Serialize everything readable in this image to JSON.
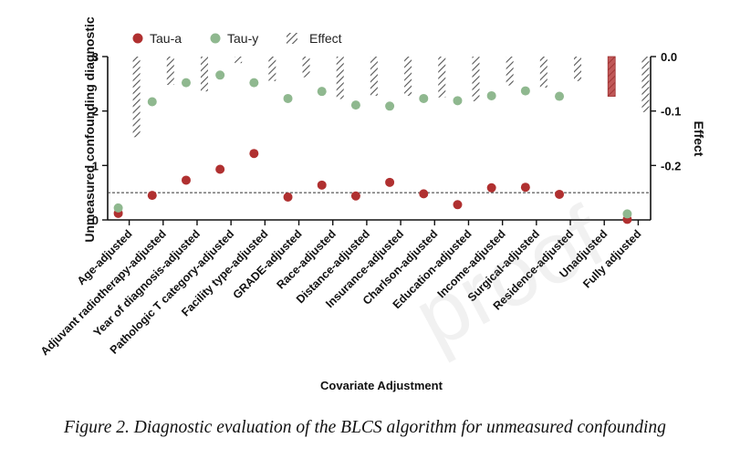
{
  "chart_data": {
    "type": "scatter",
    "xlabel": "Covariate Adjustment",
    "ylabel_left": "Unmeasured confounding diagnostic",
    "ylabel_right": "Effect",
    "left_ylim": [
      0,
      3
    ],
    "left_ticks": [
      "0",
      "1",
      "2",
      "3"
    ],
    "right_ylim": [
      -0.3,
      0.0
    ],
    "right_ticks": [
      "0.0",
      "-0.1",
      "-0.2"
    ],
    "reference_line_y": 0.5,
    "legend_position": "top-left",
    "categories": [
      "Age-adjusted",
      "Adjuvant radiotherapy-adjusted",
      "Year of diagnosis-adjusted",
      "Pathologic T category-adjusted",
      "Facility type-adjusted",
      "GRADE-adjusted",
      "Race-adjusted",
      "Distance-adjusted",
      "Insurance-adjusted",
      "Charlson-adjusted",
      "Education-adjusted",
      "Income-adjusted",
      "Surgical-adjusted",
      "Residence-adjusted",
      "Unadjusted",
      "Fully adjusted"
    ],
    "series": [
      {
        "name": "Tau-a",
        "color": "#b03030",
        "values": [
          0.12,
          0.45,
          0.73,
          0.93,
          1.22,
          0.42,
          0.64,
          0.44,
          0.69,
          0.48,
          0.28,
          0.59,
          0.6,
          0.47,
          null,
          0.01
        ]
      },
      {
        "name": "Tau-y",
        "color": "#8fb88f",
        "values": [
          0.22,
          2.17,
          2.52,
          2.66,
          2.52,
          2.23,
          2.36,
          2.11,
          2.09,
          2.23,
          2.19,
          2.28,
          2.37,
          2.27,
          null,
          0.11
        ]
      },
      {
        "name": "Effect",
        "color": "#444444",
        "values": [
          -0.148,
          -0.052,
          -0.064,
          -0.012,
          -0.045,
          -0.038,
          -0.078,
          -0.072,
          -0.072,
          -0.075,
          -0.082,
          -0.053,
          -0.057,
          -0.045,
          -0.073,
          -0.102
        ]
      }
    ]
  },
  "caption": "Figure 2. Diagnostic evaluation of the BLCS algorithm for unmeasured confounding",
  "watermark": "proof"
}
